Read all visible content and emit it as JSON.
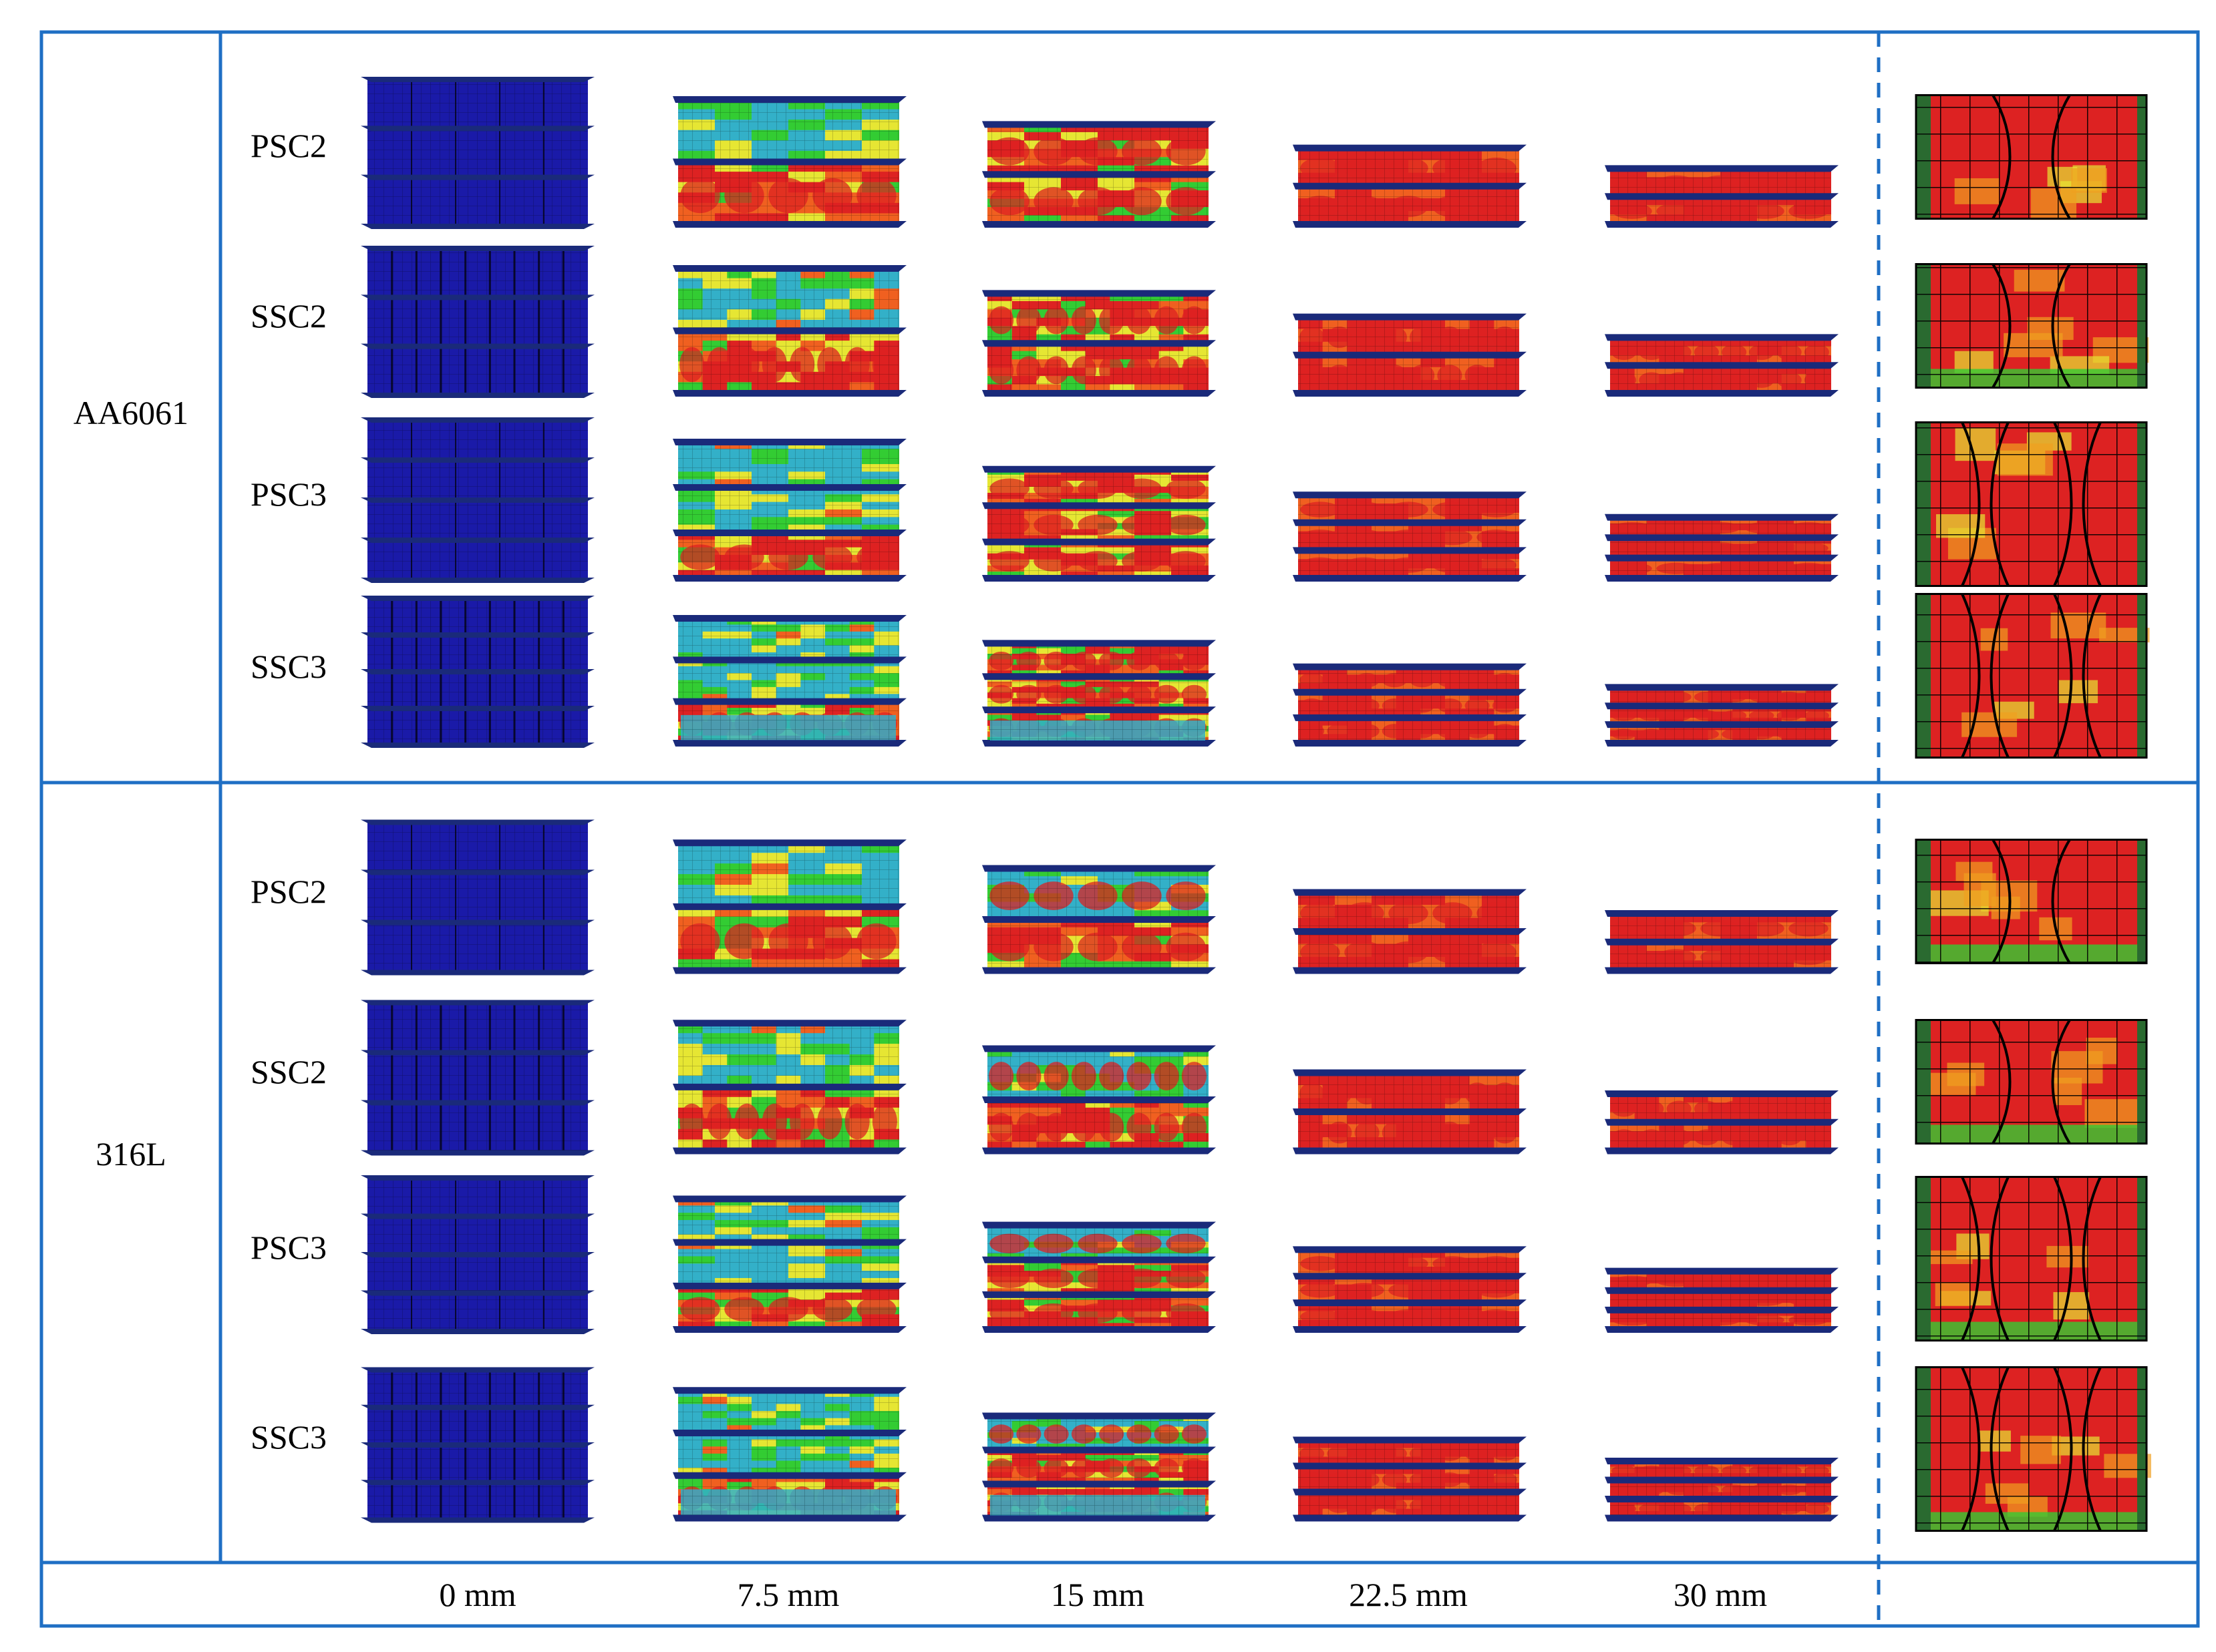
{
  "groups": [
    {
      "material": "AA6061",
      "rows": [
        "PSC2",
        "SSC2",
        "PSC3",
        "SSC3"
      ]
    },
    {
      "material": "316L",
      "rows": [
        "PSC2",
        "SSC2",
        "PSC3",
        "SSC3"
      ]
    }
  ],
  "columns": [
    "0 mm",
    "7.5 mm",
    "15 mm",
    "22.5 mm",
    "30 mm"
  ],
  "stage_fraction": [
    1.0,
    0.85,
    0.68,
    0.52,
    0.38
  ],
  "colors": {
    "frame": "#1f6fc4",
    "undeformed": "#1a1aa8",
    "plate": "#1a2a7a",
    "low_strain": "#33cc33",
    "mid_strain": "#e6e633",
    "high_strain": "#dd2222",
    "cyan": "#33b0c8",
    "mesh": "#000000"
  }
}
